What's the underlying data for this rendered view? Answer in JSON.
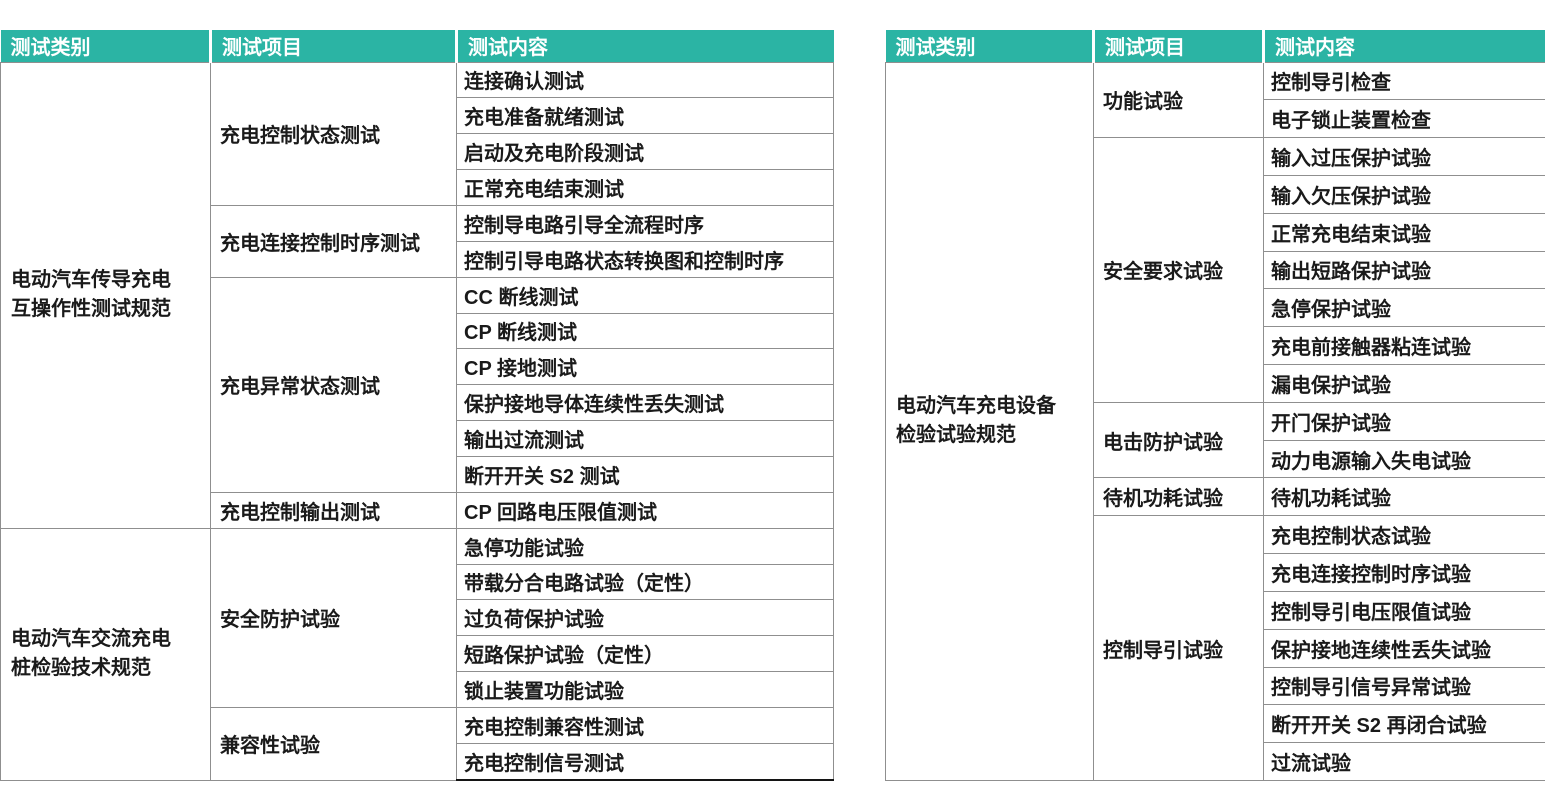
{
  "colors": {
    "header_bg": "#2bb4a4",
    "header_text": "#ffffff",
    "grid_line": "#8f8f8f",
    "body_text": "#1a1a1a",
    "left_table_bottom_border": "#141414"
  },
  "left_table": {
    "headers": [
      "测试类别",
      "测试项目",
      "测试内容"
    ],
    "groups": [
      {
        "category": "电动汽车传导充电\n互操作性测试规范",
        "items": [
          {
            "item": "充电控制状态测试",
            "contents": [
              "连接确认测试",
              "充电准备就绪测试",
              "启动及充电阶段测试",
              "正常充电结束测试"
            ]
          },
          {
            "item": "充电连接控制时序测试",
            "contents": [
              "控制导电路引导全流程时序",
              "控制引导电路状态转换图和控制时序"
            ]
          },
          {
            "item": "充电异常状态测试",
            "contents": [
              "CC 断线测试",
              "CP 断线测试",
              "CP 接地测试",
              "保护接地导体连续性丢失测试",
              "输出过流测试",
              "断开开关 S2 测试"
            ]
          },
          {
            "item": "充电控制输出测试",
            "contents": [
              "CP 回路电压限值测试"
            ]
          }
        ]
      },
      {
        "category": "电动汽车交流充电\n桩检验技术规范",
        "items": [
          {
            "item": "安全防护试验",
            "contents": [
              "急停功能试验",
              "带载分合电路试验（定性）",
              "过负荷保护试验",
              "短路保护试验（定性）",
              "锁止装置功能试验"
            ]
          },
          {
            "item": "兼容性试验",
            "contents": [
              "充电控制兼容性测试",
              "充电控制信号测试"
            ]
          }
        ]
      }
    ]
  },
  "right_table": {
    "headers": [
      "测试类别",
      "测试项目",
      "测试内容"
    ],
    "groups": [
      {
        "category": "电动汽车充电设备\n检验试验规范",
        "items": [
          {
            "item": "功能试验",
            "contents": [
              "控制导引检查",
              "电子锁止装置检查"
            ]
          },
          {
            "item": "安全要求试验",
            "contents": [
              "输入过压保护试验",
              "输入欠压保护试验",
              "正常充电结束试验",
              "输出短路保护试验",
              "急停保护试验",
              "充电前接触器粘连试验",
              "漏电保护试验"
            ]
          },
          {
            "item": "电击防护试验",
            "contents": [
              "开门保护试验",
              "动力电源输入失电试验"
            ]
          },
          {
            "item": "待机功耗试验",
            "contents": [
              "待机功耗试验"
            ]
          },
          {
            "item": "控制导引试验",
            "contents": [
              "充电控制状态试验",
              "充电连接控制时序试验",
              "控制导引电压限值试验",
              "保护接地连续性丢失试验",
              "控制导引信号异常试验",
              "断开开关 S2 再闭合试验",
              "过流试验"
            ]
          }
        ]
      }
    ]
  }
}
